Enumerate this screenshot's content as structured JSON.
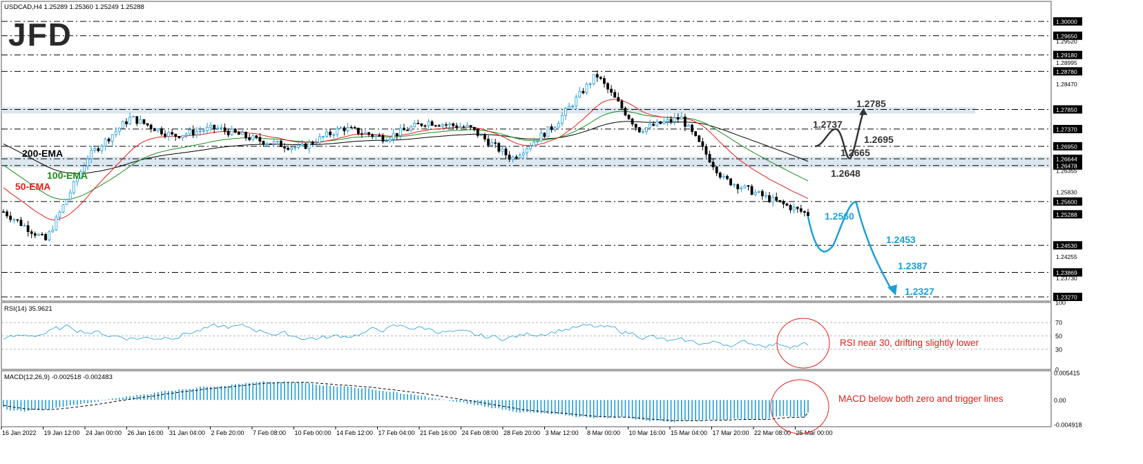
{
  "header": {
    "symbol_line": "USDCAD,H4  1.25289 1.25360 1.25249 1.25288"
  },
  "logo": {
    "text": "JFD"
  },
  "price_axis": {
    "range": [
      1.2318,
      1.302
    ],
    "ticks": [
      "1.30000",
      "1.29650",
      "1.29520",
      "1.29180",
      "1.28995",
      "1.28780",
      "1.28470",
      "1.27850",
      "1.27370",
      "1.26950",
      "1.26644",
      "1.26478",
      "1.26355",
      "1.25830",
      "1.25600",
      "1.25288",
      "1.24530",
      "1.24255",
      "1.23869",
      "1.23730",
      "1.23270"
    ],
    "tick_values": [
      1.3,
      1.2965,
      1.2952,
      1.2918,
      1.28995,
      1.2878,
      1.2847,
      1.2785,
      1.2737,
      1.2695,
      1.26644,
      1.26478,
      1.26355,
      1.2583,
      1.256,
      1.25288,
      1.2453,
      1.24255,
      1.23869,
      1.2373,
      1.2327
    ],
    "boxed": [
      true,
      true,
      false,
      true,
      false,
      true,
      false,
      true,
      true,
      true,
      true,
      true,
      false,
      false,
      true,
      true,
      true,
      false,
      true,
      false,
      true
    ],
    "dashed_levels": [
      1.3,
      1.2965,
      1.2918,
      1.2878,
      1.2785,
      1.2737,
      1.2695,
      1.26644,
      1.26478,
      1.256,
      1.2453,
      1.23869,
      1.2327
    ],
    "zone_levels": [
      [
        1.2785,
        1.278
      ],
      [
        1.26644,
        1.26478
      ]
    ]
  },
  "time_axis": {
    "labels": [
      "16 Jan 2022",
      "19 Jan 12:00",
      "24 Jan 00:00",
      "26 Jan 16:00",
      "31 Jan 04:00",
      "2 Feb 20:00",
      "7 Feb 08:00",
      "10 Feb 00:00",
      "14 Feb 12:00",
      "17 Feb 04:00",
      "21 Feb 16:00",
      "24 Feb 08:00",
      "28 Feb 20:00",
      "3 Mar 12:00",
      "8 Mar 00:00",
      "10 Mar 16:00",
      "15 Mar 04:00",
      "17 Mar 20:00",
      "22 Mar 08:00",
      "25 Mar 00:00"
    ]
  },
  "ema_labels": {
    "ema200": "200-EMA",
    "ema100": "100-EMA",
    "ema50": "50-EMA"
  },
  "annotations": {
    "up_labels": [
      "1.2737",
      "1.2785",
      "1.2695",
      "1.2665",
      "1.2648"
    ],
    "down_labels": [
      "1.2560",
      "1.2453",
      "1.2387",
      "1.2327"
    ]
  },
  "rsi": {
    "title": "RSI(14) 35.9621",
    "ticks": [
      "70",
      "50",
      "30"
    ],
    "extra_ticks": [
      "100",
      "0"
    ],
    "note": "RSI near 30, drifting slightly lower"
  },
  "macd": {
    "title": "MACD(12,26,9) -0.002518 -0.002483",
    "ticks": [
      "0.005415",
      "0.00",
      "-0.004918"
    ],
    "note": "MACD below both zero and trigger lines"
  },
  "chart_data": {
    "type": "candlestick",
    "title": "USDCAD,H4",
    "ohlc_last": {
      "open": 1.25289,
      "high": 1.2536,
      "low": 1.25249,
      "close": 1.25288
    },
    "ylim": [
      1.2318,
      1.302
    ],
    "key_points": [
      {
        "time": "16 Jan 2022",
        "price": 1.2535
      },
      {
        "time": "19 Jan 12:00",
        "price": 1.2465
      },
      {
        "time": "24 Jan 00:00",
        "price": 1.267
      },
      {
        "time": "26 Jan 16:00",
        "price": 1.2765
      },
      {
        "time": "31 Jan 04:00",
        "price": 1.272
      },
      {
        "time": "2 Feb 20:00",
        "price": 1.274
      },
      {
        "time": "7 Feb 08:00",
        "price": 1.271
      },
      {
        "time": "10 Feb 00:00",
        "price": 1.269
      },
      {
        "time": "14 Feb 12:00",
        "price": 1.274
      },
      {
        "time": "17 Feb 04:00",
        "price": 1.2715
      },
      {
        "time": "21 Feb 16:00",
        "price": 1.2755
      },
      {
        "time": "24 Feb 08:00",
        "price": 1.274
      },
      {
        "time": "28 Feb 20:00",
        "price": 1.2665
      },
      {
        "time": "3 Mar 12:00",
        "price": 1.2745
      },
      {
        "time": "8 Mar 00:00",
        "price": 1.287
      },
      {
        "time": "10 Mar 16:00",
        "price": 1.2735
      },
      {
        "time": "15 Mar 04:00",
        "price": 1.2765
      },
      {
        "time": "17 Mar 20:00",
        "price": 1.2615
      },
      {
        "time": "22 Mar 08:00",
        "price": 1.257
      },
      {
        "time": "25 Mar 00:00",
        "price": 1.2529
      }
    ],
    "ema_end_values": {
      "200-EMA": 1.2705,
      "100-EMA": 1.2675,
      "50-EMA": 1.2618
    },
    "scenarios": {
      "bullish": [
        1.2695,
        1.2737,
        1.2665,
        1.2785
      ],
      "bearish": [
        1.256,
        1.2453,
        1.2387,
        1.2327
      ]
    },
    "rsi_value": 35.9621,
    "rsi_range": [
      0,
      100
    ],
    "macd_values": {
      "macd": -0.002518,
      "signal": -0.002483
    },
    "macd_range": [
      -0.004918,
      0.005415
    ]
  },
  "colors": {
    "bull": "#1e9bd7",
    "bear": "#000000",
    "ema200": "#000000",
    "ema100": "#1a8c1a",
    "ema50": "#e0201b",
    "arrow_down": "#1aa0d8",
    "arrow_up": "#333333",
    "note": "#e0201b"
  }
}
